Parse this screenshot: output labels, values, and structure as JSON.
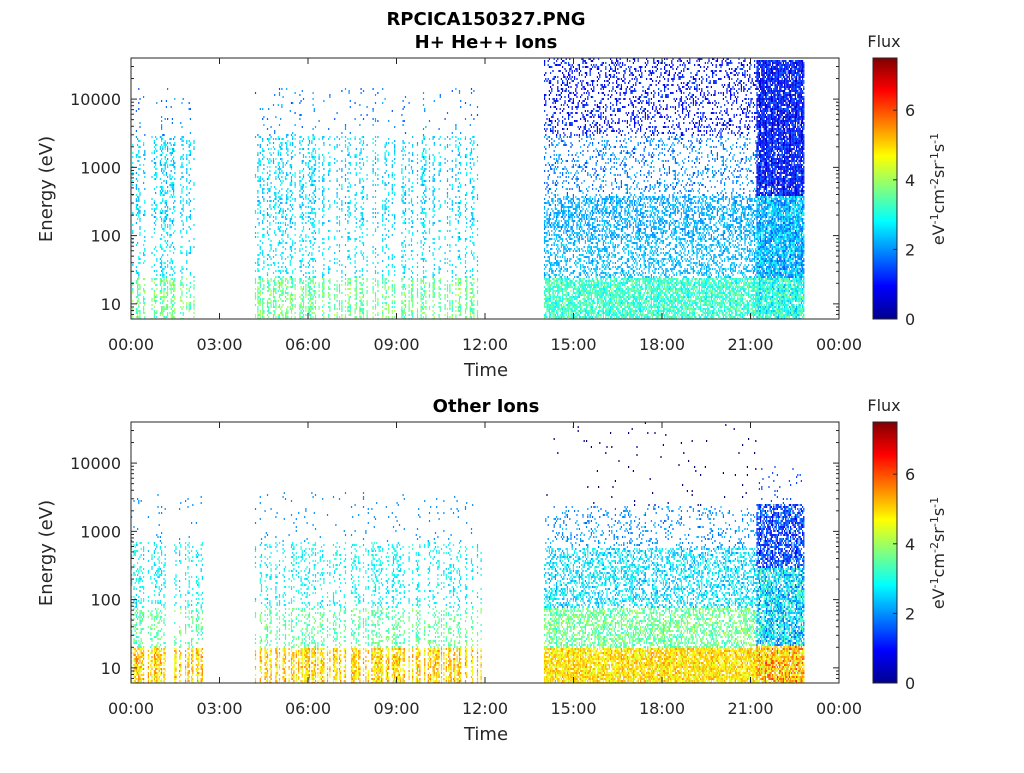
{
  "figure": {
    "title": "RPCICA150327.PNG"
  },
  "chart_data": [
    {
      "type": "heatmap",
      "title": "H+ He++ Ions",
      "xlabel": "Time",
      "ylabel": "Energy (eV)",
      "x_ticks": [
        "00:00",
        "03:00",
        "06:00",
        "09:00",
        "12:00",
        "15:00",
        "18:00",
        "21:00",
        "00:00"
      ],
      "y_ticks": [
        "10",
        "100",
        "1000",
        "10000"
      ],
      "y_scale": "log",
      "ylim": [
        6,
        40000
      ],
      "colorbar": {
        "title": "Flux",
        "label": "eV-1cm-2sr-1s-1",
        "range": [
          0,
          7.5
        ],
        "ticks": [
          "0",
          "2",
          "4",
          "6"
        ],
        "colormap": "jet"
      },
      "data_segments_hours": [
        [
          0.0,
          2.4
        ],
        [
          4.2,
          11.9
        ],
        [
          14.0,
          21.2
        ],
        [
          21.2,
          22.8
        ]
      ],
      "description_levels": "flux ~2-3 at 100-3000 eV, ~3.5-4 below 30 eV; after 14:00 broad 0.5-3 across all energies; 21:15-22:45 intense low-flux (blue) band up to 40000 eV"
    },
    {
      "type": "heatmap",
      "title": "Other Ions",
      "xlabel": "Time",
      "ylabel": "Energy (eV)",
      "x_ticks": [
        "00:00",
        "03:00",
        "06:00",
        "09:00",
        "12:00",
        "15:00",
        "18:00",
        "21:00",
        "00:00"
      ],
      "y_ticks": [
        "10",
        "100",
        "1000",
        "10000"
      ],
      "y_scale": "log",
      "ylim": [
        6,
        40000
      ],
      "colorbar": {
        "title": "Flux",
        "label": "eV-1cm-2sr-1s-1",
        "range": [
          0,
          7.5
        ],
        "ticks": [
          "0",
          "2",
          "4",
          "6"
        ],
        "colormap": "jet"
      },
      "data_segments_hours": [
        [
          0.0,
          2.4
        ],
        [
          4.2,
          11.9
        ],
        [
          14.0,
          21.2
        ],
        [
          21.2,
          22.8
        ]
      ],
      "description_levels": "flux ~4-5.5 below 20 eV, ~2.5-3.5 at 30-300 eV, sparse above 1000 eV; 21:15-22:45 blue band up to 2500 eV with orange/red below 20 eV"
    }
  ]
}
